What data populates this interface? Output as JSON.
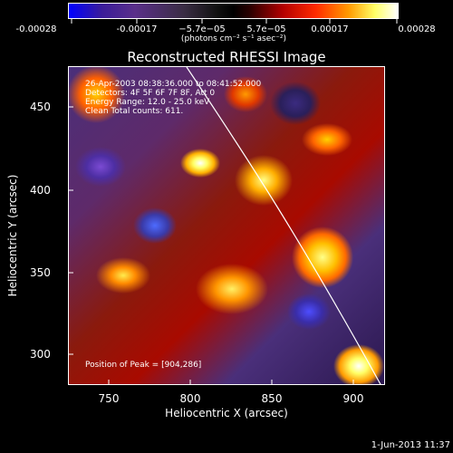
{
  "colorbar": {
    "tick_labels": [
      "-0.00028",
      "-0.00017",
      "−5.7e−05",
      "5.7e−05",
      "0.00017",
      "0.00028"
    ],
    "unit_label": "(photons cm⁻² s⁻¹ asec⁻²)"
  },
  "plot": {
    "title": "Reconstructed RHESSI Image",
    "info_lines": [
      "26-Apr-2003 08:38:36.000 to 08:41:52.000",
      "Detectors: 4F 5F 6F 7F 8F, Att 0",
      "Energy Range: 12.0 - 25.0 keV",
      "Clean    Total counts: 611."
    ],
    "peak_text": "Position of Peak = [904,286]",
    "x_axis_title": "Heliocentric X (arcsec)",
    "y_axis_title": "Heliocentric Y (arcsec)",
    "x_ticks": [
      "750",
      "800",
      "850",
      "900"
    ],
    "y_ticks": [
      "450",
      "400",
      "350",
      "300"
    ]
  },
  "footer": {
    "timestamp": "1-Jun-2013 11:37"
  }
}
